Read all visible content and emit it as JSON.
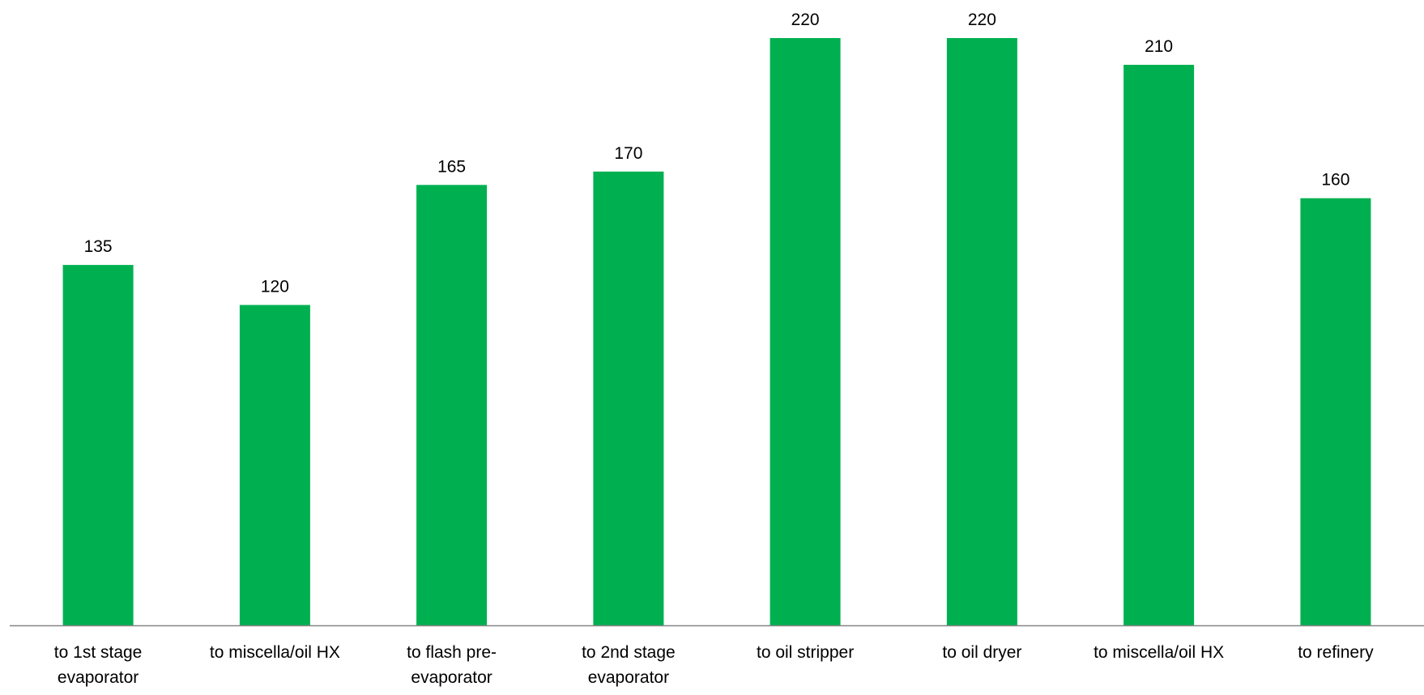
{
  "chart_data": {
    "type": "bar",
    "categories": [
      [
        "to 1st stage",
        "evaporator"
      ],
      [
        "to miscella/oil HX"
      ],
      [
        "to flash pre-",
        "evaporator"
      ],
      [
        "to 2nd stage",
        "evaporator"
      ],
      [
        "to oil stripper"
      ],
      [
        "to oil dryer"
      ],
      [
        "to miscella/oil HX"
      ],
      [
        "to refinery"
      ]
    ],
    "values": [
      135,
      120,
      165,
      170,
      220,
      220,
      210,
      160
    ],
    "ylim": [
      0,
      220
    ],
    "title": "",
    "xlabel": "",
    "ylabel": "",
    "grid": false,
    "legend": "none",
    "bar_color": "#00B050",
    "axis_color": "#868686"
  }
}
